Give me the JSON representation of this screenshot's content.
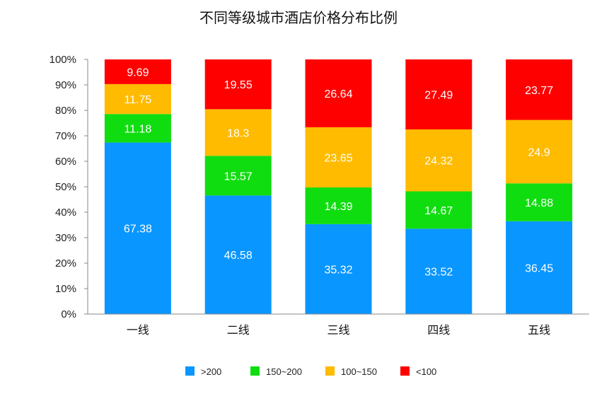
{
  "chart_data": {
    "type": "bar",
    "stacked": true,
    "title": "不同等级城市酒店价格分布比例",
    "categories": [
      "一线",
      "二线",
      "三线",
      "四线",
      "五线"
    ],
    "series": [
      {
        "name": ">200",
        "color": "#0a96ff",
        "values": [
          67.38,
          46.58,
          35.32,
          33.52,
          36.45
        ]
      },
      {
        "name": "150~200",
        "color": "#10dd10",
        "values": [
          11.18,
          15.57,
          14.39,
          14.67,
          14.88
        ]
      },
      {
        "name": "100~150",
        "color": "#ffbb00",
        "values": [
          11.75,
          18.3,
          23.65,
          24.32,
          24.9
        ]
      },
      {
        "name": "<100",
        "color": "#ff0000",
        "values": [
          9.69,
          19.55,
          26.64,
          27.49,
          23.77
        ]
      }
    ],
    "ylim": [
      0,
      100
    ],
    "yticks": [
      "0%",
      "10%",
      "20%",
      "30%",
      "40%",
      "50%",
      "60%",
      "70%",
      "80%",
      "90%",
      "100%"
    ],
    "legend_position": "bottom",
    "grid": false
  }
}
